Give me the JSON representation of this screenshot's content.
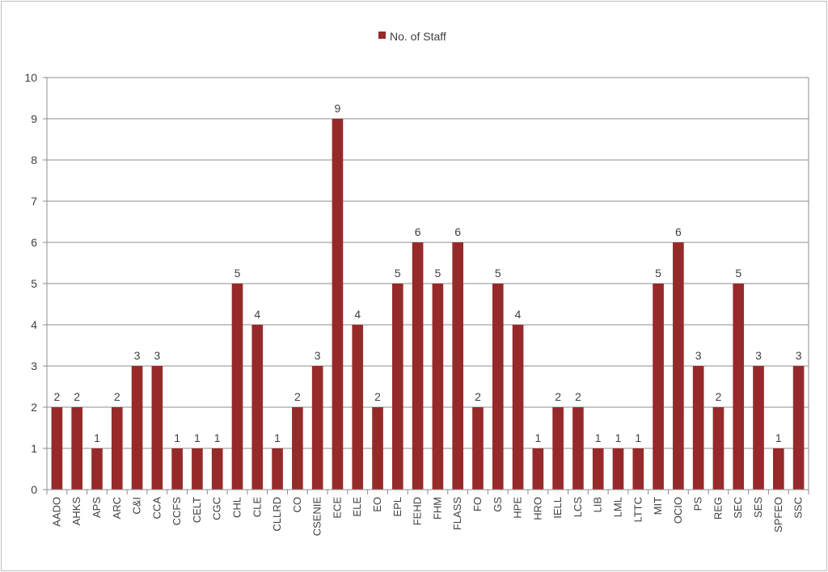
{
  "chart_data": {
    "type": "bar",
    "series": [
      {
        "name": "No. of Staff",
        "color": "#962a2a",
        "values": [
          2,
          2,
          1,
          2,
          3,
          3,
          1,
          1,
          1,
          5,
          4,
          1,
          2,
          3,
          9,
          4,
          2,
          5,
          6,
          5,
          6,
          2,
          5,
          4,
          1,
          2,
          2,
          1,
          1,
          1,
          5,
          6,
          3,
          2,
          5,
          3,
          1,
          3
        ]
      }
    ],
    "categories": [
      "AADO",
      "AHKS",
      "APS",
      "ARC",
      "C&I",
      "CCA",
      "CCFS",
      "CELT",
      "CGC",
      "CHL",
      "CLE",
      "CLLRD",
      "CO",
      "CSENIE",
      "ECE",
      "ELE",
      "EO",
      "EPL",
      "FEHD",
      "FHM",
      "FLASS",
      "FO",
      "GS",
      "HPE",
      "HRO",
      "IELL",
      "LCS",
      "LIB",
      "LML",
      "LTTC",
      "MIT",
      "OCIO",
      "PS",
      "REG",
      "SEC",
      "SES",
      "SPFEO",
      "SSC"
    ],
    "ylim": [
      0,
      10
    ],
    "yticks": [
      0,
      1,
      2,
      3,
      4,
      5,
      6,
      7,
      8,
      9,
      10
    ],
    "grid": true,
    "legend_position": "top-center",
    "data_labels": true,
    "xlabel": "",
    "ylabel": "",
    "title": ""
  }
}
